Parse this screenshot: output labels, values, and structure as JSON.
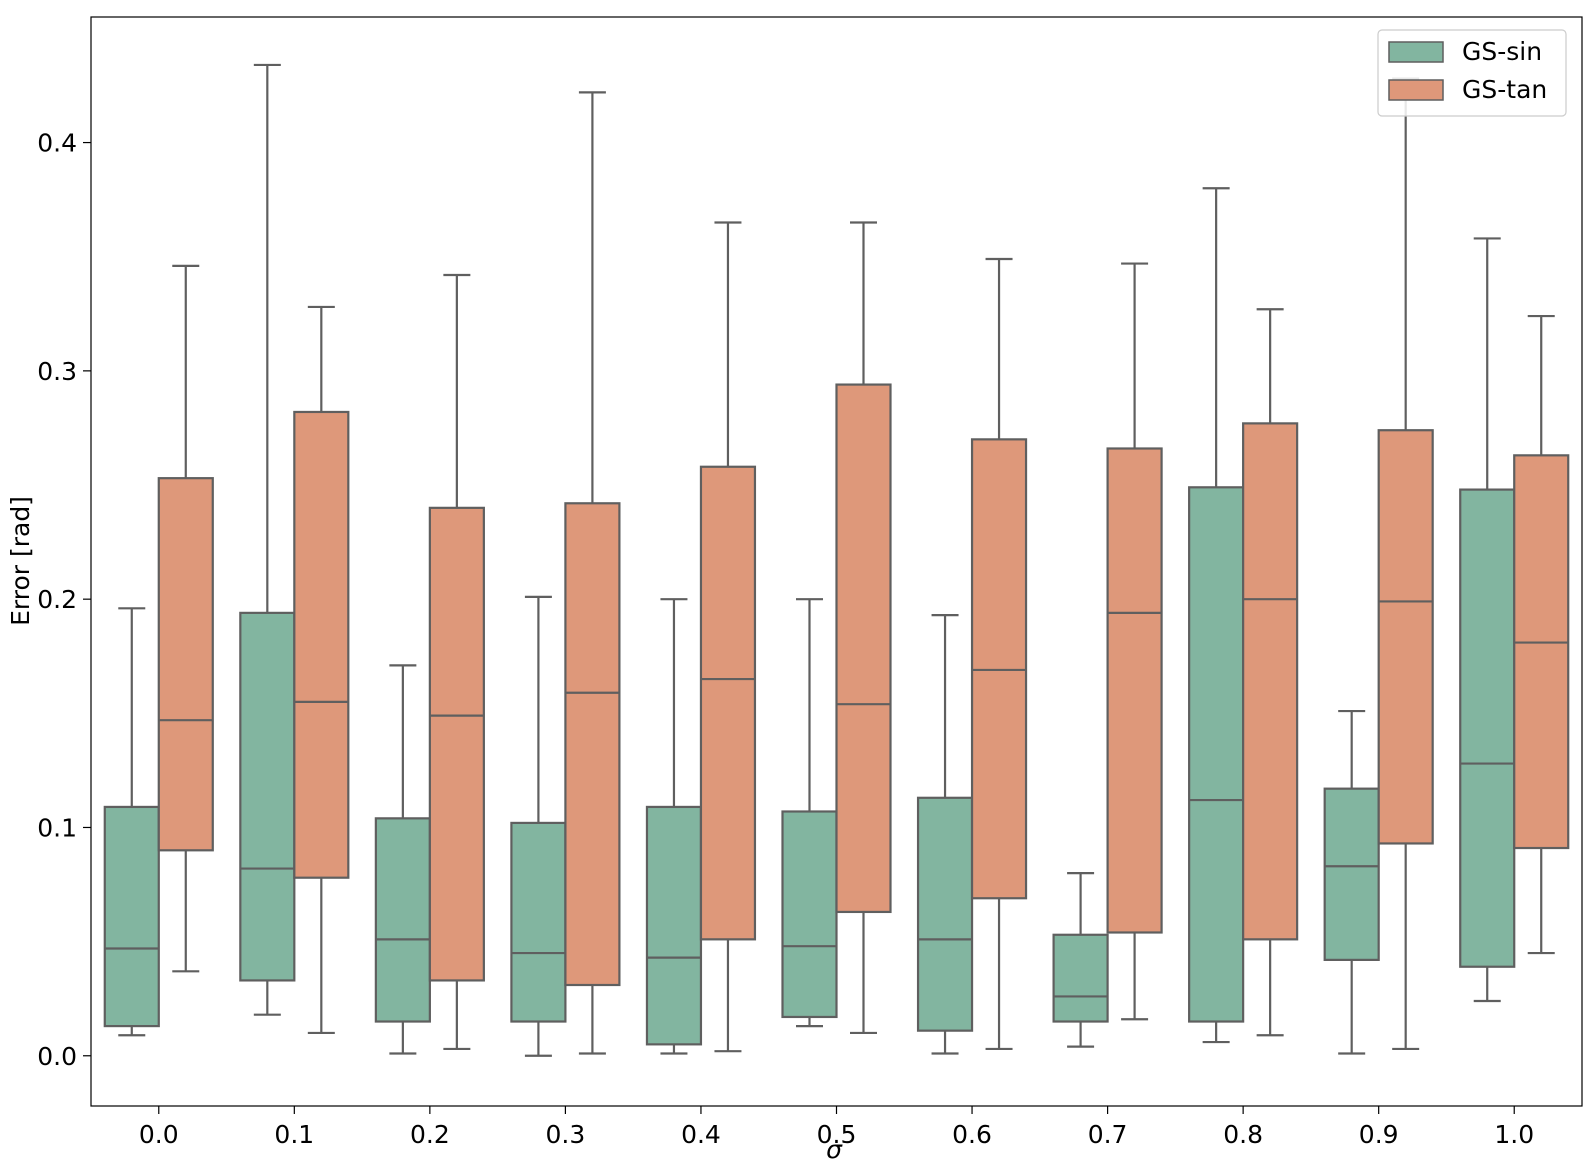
{
  "chart_data": {
    "type": "boxplot",
    "title": "",
    "xlabel": "σ",
    "ylabel": "Error [rad]",
    "ylim": [
      -0.022,
      0.455
    ],
    "yticks": [
      "0.0",
      "0.1",
      "0.2",
      "0.3",
      "0.4"
    ],
    "ytick_values": [
      0.0,
      0.1,
      0.2,
      0.3,
      0.4
    ],
    "categories": [
      "0.0",
      "0.1",
      "0.2",
      "0.3",
      "0.4",
      "0.5",
      "0.6",
      "0.7",
      "0.8",
      "0.9",
      "1.0"
    ],
    "legend": {
      "position": "top-right",
      "entries": [
        "GS-sin",
        "GS-tan"
      ]
    },
    "series": [
      {
        "name": "GS-sin",
        "color": "#82b5a0",
        "boxes": [
          {
            "whislo": 0.009,
            "q1": 0.013,
            "med": 0.047,
            "q3": 0.109,
            "whishi": 0.196
          },
          {
            "whislo": 0.018,
            "q1": 0.033,
            "med": 0.082,
            "q3": 0.194,
            "whishi": 0.434
          },
          {
            "whislo": 0.001,
            "q1": 0.015,
            "med": 0.051,
            "q3": 0.104,
            "whishi": 0.171
          },
          {
            "whislo": 0.0,
            "q1": 0.015,
            "med": 0.045,
            "q3": 0.102,
            "whishi": 0.201
          },
          {
            "whislo": 0.001,
            "q1": 0.005,
            "med": 0.043,
            "q3": 0.109,
            "whishi": 0.2
          },
          {
            "whislo": 0.013,
            "q1": 0.017,
            "med": 0.048,
            "q3": 0.107,
            "whishi": 0.2
          },
          {
            "whislo": 0.001,
            "q1": 0.011,
            "med": 0.051,
            "q3": 0.113,
            "whishi": 0.193
          },
          {
            "whislo": 0.004,
            "q1": 0.015,
            "med": 0.026,
            "q3": 0.053,
            "whishi": 0.08
          },
          {
            "whislo": 0.006,
            "q1": 0.015,
            "med": 0.112,
            "q3": 0.249,
            "whishi": 0.38
          },
          {
            "whislo": 0.001,
            "q1": 0.042,
            "med": 0.083,
            "q3": 0.117,
            "whishi": 0.151
          },
          {
            "whislo": 0.024,
            "q1": 0.039,
            "med": 0.128,
            "q3": 0.248,
            "whishi": 0.358
          }
        ]
      },
      {
        "name": "GS-tan",
        "color": "#de987a",
        "boxes": [
          {
            "whislo": 0.037,
            "q1": 0.09,
            "med": 0.147,
            "q3": 0.253,
            "whishi": 0.346
          },
          {
            "whislo": 0.01,
            "q1": 0.078,
            "med": 0.155,
            "q3": 0.282,
            "whishi": 0.328
          },
          {
            "whislo": 0.003,
            "q1": 0.033,
            "med": 0.149,
            "q3": 0.24,
            "whishi": 0.342
          },
          {
            "whislo": 0.001,
            "q1": 0.031,
            "med": 0.159,
            "q3": 0.242,
            "whishi": 0.422
          },
          {
            "whislo": 0.002,
            "q1": 0.051,
            "med": 0.165,
            "q3": 0.258,
            "whishi": 0.365
          },
          {
            "whislo": 0.01,
            "q1": 0.063,
            "med": 0.154,
            "q3": 0.294,
            "whishi": 0.365
          },
          {
            "whislo": 0.003,
            "q1": 0.069,
            "med": 0.169,
            "q3": 0.27,
            "whishi": 0.349
          },
          {
            "whislo": 0.016,
            "q1": 0.054,
            "med": 0.194,
            "q3": 0.266,
            "whishi": 0.347
          },
          {
            "whislo": 0.009,
            "q1": 0.051,
            "med": 0.2,
            "q3": 0.277,
            "whishi": 0.327
          },
          {
            "whislo": 0.003,
            "q1": 0.093,
            "med": 0.199,
            "q3": 0.274,
            "whishi": 0.428
          },
          {
            "whislo": 0.045,
            "q1": 0.091,
            "med": 0.181,
            "q3": 0.263,
            "whishi": 0.324
          }
        ]
      }
    ]
  }
}
